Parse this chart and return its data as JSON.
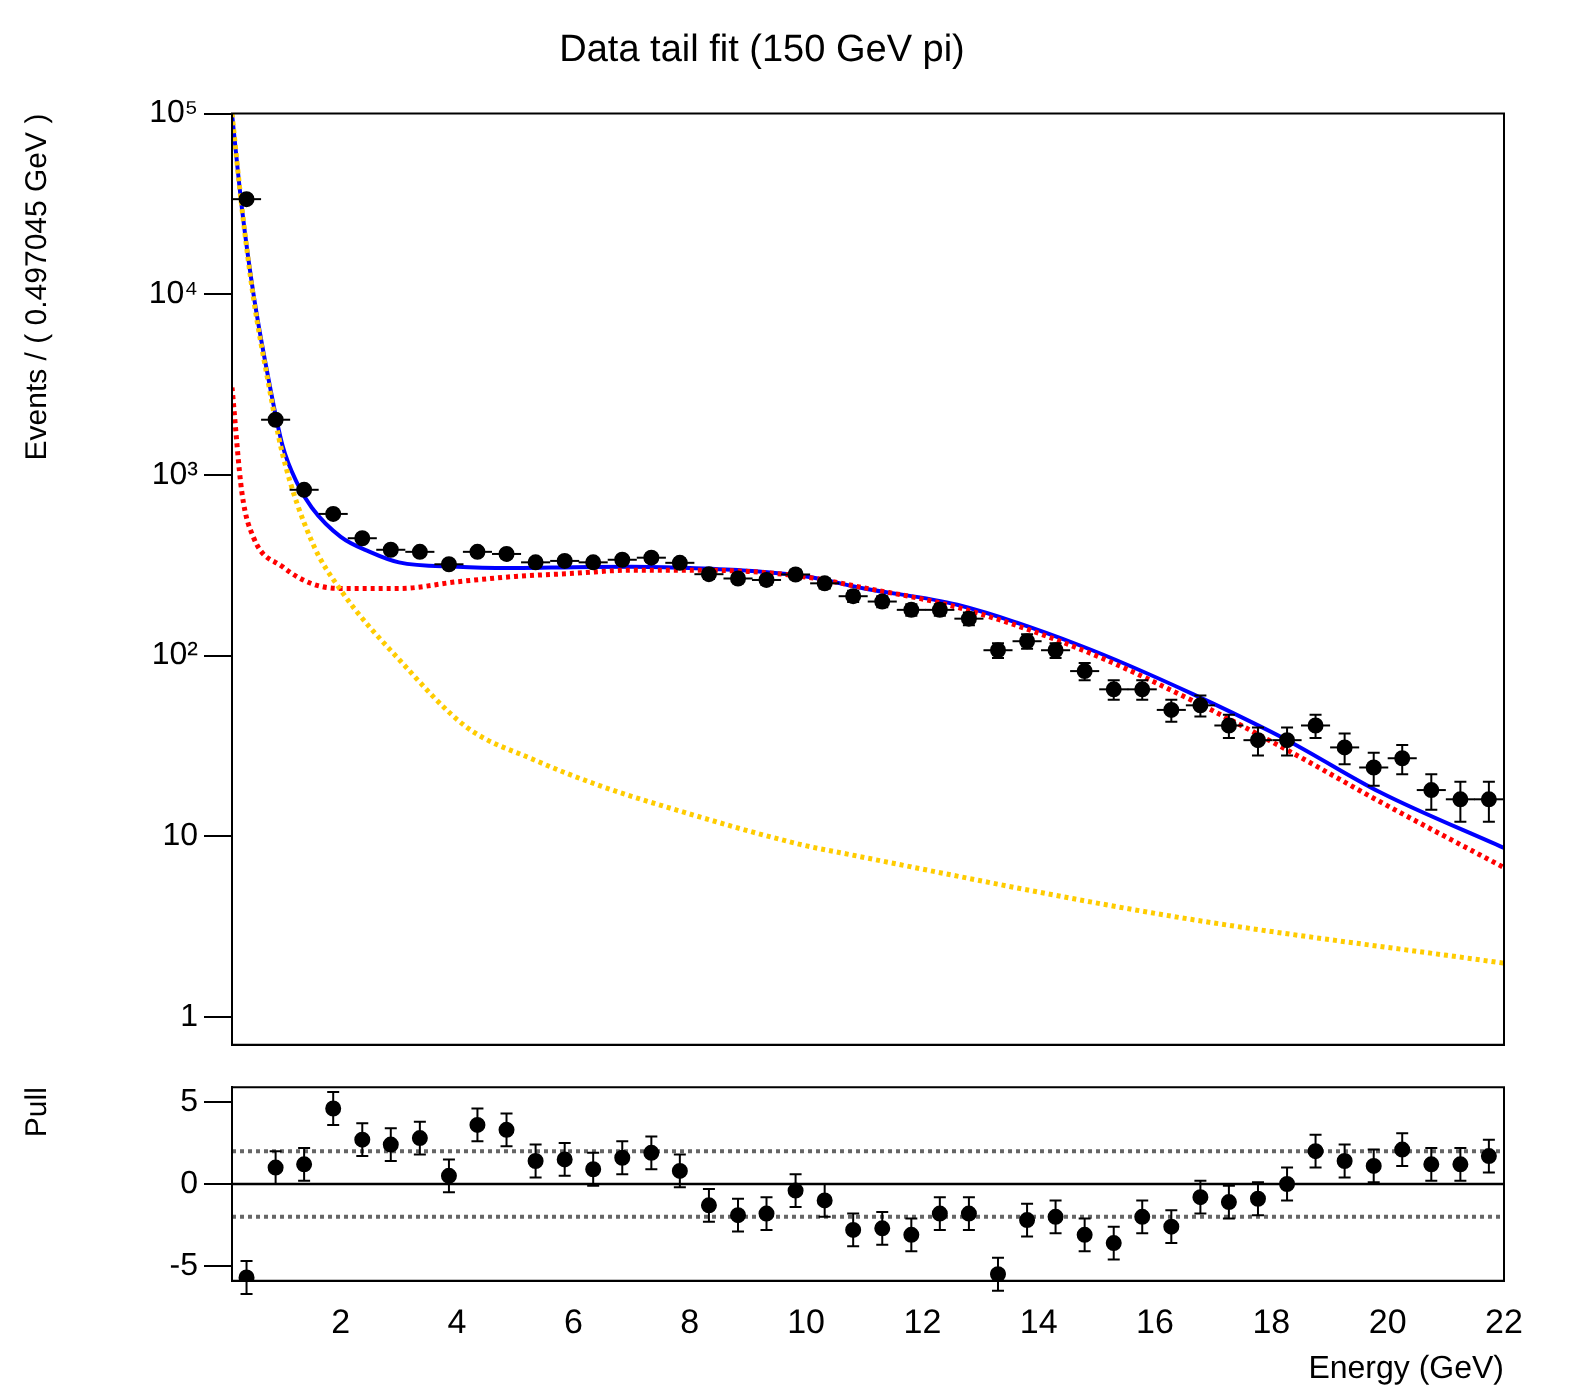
{
  "chart_data": [
    {
      "type": "scatter",
      "title": "Data tail fit (150 GeV pi)",
      "ylabel": "Events / ( 0.497045 GeV )",
      "log": "y",
      "grid": false,
      "legend": false,
      "tick_labels": "y",
      "marker": "circle",
      "xlim": [
        0.13,
        22
      ],
      "xticks": [
        2,
        4,
        6,
        8,
        10,
        12,
        14,
        16,
        18,
        20,
        22
      ],
      "ylim": [
        0.7,
        100000
      ],
      "yticks": [
        1,
        10,
        {
          "value": 100,
          "label": "10²"
        },
        {
          "value": 1000,
          "label": "10³"
        },
        {
          "value": 10000,
          "label": "10⁴"
        },
        {
          "value": 100000,
          "label": "10⁵"
        }
      ],
      "series": [
        {
          "type": "scatter",
          "color": "#000000",
          "x": [
            0.38,
            0.88,
            1.37,
            1.87,
            2.37,
            2.86,
            3.36,
            3.86,
            4.35,
            4.85,
            5.35,
            5.85,
            6.34,
            6.84,
            7.34,
            7.83,
            8.33,
            8.83,
            9.32,
            9.82,
            10.32,
            10.81,
            11.31,
            11.81,
            12.3,
            12.8,
            13.3,
            13.8,
            14.29,
            14.79,
            15.29,
            15.78,
            16.28,
            16.78,
            17.27,
            17.77,
            18.27,
            18.76,
            19.26,
            19.76,
            20.25,
            20.75,
            21.25,
            21.74
          ],
          "values": [
            33600,
            2020,
            827,
            608,
            446,
            385,
            375,
            320,
            375,
            365,
            328,
            334,
            328,
            339,
            348,
            326,
            282,
            267,
            262,
            281,
            251,
            213,
            199,
            179,
            179,
            160,
            107,
            120,
            107,
            82,
            65,
            65,
            50,
            53,
            41,
            34,
            34,
            41,
            31,
            24,
            27,
            18,
            16,
            16
          ],
          "errors": [
            183,
            45,
            29,
            25,
            21,
            20,
            19,
            18,
            19,
            19,
            18,
            18,
            18,
            18,
            19,
            18,
            17,
            16,
            16,
            17,
            16,
            15,
            14,
            13,
            13,
            13,
            10,
            11,
            10,
            9,
            8,
            8,
            7,
            7,
            6,
            6,
            6,
            6,
            6,
            5,
            5,
            4,
            4,
            4
          ],
          "xerrors": [
            0.25,
            0.25,
            0.25,
            0.25,
            0.25,
            0.25,
            0.25,
            0.25,
            0.25,
            0.25,
            0.25,
            0.25,
            0.25,
            0.25,
            0.25,
            0.25,
            0.25,
            0.25,
            0.25,
            0.25,
            0.25,
            0.25,
            0.25,
            0.25,
            0.25,
            0.25,
            0.25,
            0.25,
            0.25,
            0.25,
            0.25,
            0.25,
            0.25,
            0.25,
            0.25,
            0.25,
            0.25,
            0.25,
            0.25,
            0.25,
            0.25,
            0.25,
            0.25,
            0.25
          ]
        },
        {
          "type": "line",
          "color": "#ffcc00",
          "line_style": "dotted",
          "marker": "none",
          "x": [
            0.13,
            0.3,
            0.5,
            0.75,
            1,
            1.5,
            2,
            3.03,
            4.17,
            5.32,
            6.46,
            7.6,
            9.9,
            10.59,
            16.3,
            22
          ],
          "values": [
            100000,
            30000,
            9500,
            3300,
            1300,
            430,
            230,
            93,
            40,
            26.5,
            19,
            14.5,
            9,
            8.1,
            3.6,
            1.98
          ]
        },
        {
          "type": "line",
          "color": "#ff0000",
          "line_style": "dotted",
          "marker": "none",
          "x": [
            0.13,
            0.3,
            0.5,
            1,
            1.5,
            2,
            3,
            4,
            5,
            6,
            7,
            8,
            9,
            10,
            11,
            12.6,
            14.7,
            16.66,
            18.27,
            19.87,
            22
          ],
          "values": [
            3050,
            800,
            450,
            310,
            250,
            235,
            235,
            256,
            274,
            285,
            297,
            297,
            292,
            272,
            237,
            185,
            109,
            56,
            30,
            15.5,
            6.7
          ]
        },
        {
          "type": "line",
          "color": "#0000ff",
          "line_style": "solid",
          "marker": "none",
          "x": [
            0.13,
            0.3,
            0.5,
            0.75,
            1,
            1.25,
            1.5,
            2,
            2.5,
            3,
            4,
            5,
            6,
            7,
            8,
            9,
            10,
            11,
            12.6,
            14.7,
            16.66,
            18.27,
            19.87,
            22
          ],
          "values": [
            100000,
            30000,
            10000,
            3500,
            1450,
            900,
            660,
            454,
            375,
            328,
            310,
            305,
            308,
            310,
            305,
            295,
            274,
            235,
            191,
            114,
            61,
            34,
            17.5,
            8.6
          ]
        }
      ]
    },
    {
      "type": "scatter",
      "xlabel": "Energy (GeV)",
      "ylabel": "Pull",
      "grid": false,
      "legend": false,
      "marker": "circle",
      "xlim": [
        0.13,
        22
      ],
      "xticks": [
        2,
        4,
        6,
        8,
        10,
        12,
        14,
        16,
        18,
        20,
        22
      ],
      "ylim": [
        -5.9,
        5.9
      ],
      "yticks": [
        -5,
        0,
        5
      ],
      "ref_lines": [
        {
          "axis": "y",
          "value": 0,
          "color": "#000000",
          "line_style": "solid"
        },
        {
          "axis": "y",
          "value": 2,
          "color": "#666666",
          "line_style": "dotted"
        },
        {
          "axis": "y",
          "value": -2,
          "color": "#666666",
          "line_style": "dotted"
        }
      ],
      "series": [
        {
          "type": "scatter",
          "color": "#000000",
          "x": [
            0.38,
            0.88,
            1.37,
            1.87,
            2.37,
            2.86,
            3.36,
            3.86,
            4.35,
            4.85,
            5.35,
            5.85,
            6.34,
            6.84,
            7.34,
            7.83,
            8.33,
            8.83,
            9.32,
            9.82,
            10.32,
            10.81,
            11.31,
            11.81,
            12.3,
            12.8,
            13.3,
            13.8,
            14.29,
            14.79,
            15.29,
            15.78,
            16.28,
            16.78,
            17.27,
            17.77,
            18.27,
            18.76,
            19.26,
            19.76,
            20.25,
            20.75,
            21.25,
            21.74
          ],
          "values": [
            -5.7,
            1.0,
            1.2,
            4.6,
            2.7,
            2.4,
            2.8,
            0.5,
            3.6,
            3.3,
            1.4,
            1.5,
            0.9,
            1.6,
            1.9,
            0.8,
            -1.3,
            -1.9,
            -1.8,
            -0.4,
            -1.0,
            -2.8,
            -2.7,
            -3.1,
            -1.8,
            -1.8,
            -5.5,
            -2.2,
            -2.0,
            -3.1,
            -3.6,
            -2.0,
            -2.6,
            -0.8,
            -1.1,
            -0.9,
            0,
            2.0,
            1.4,
            1.1,
            2.1,
            1.2,
            1.2,
            1.7
          ],
          "errors": [
            1,
            1,
            1,
            1,
            1,
            1,
            1,
            1,
            1,
            1,
            1,
            1,
            1,
            1,
            1,
            1,
            1,
            1,
            1,
            1,
            1,
            1,
            1,
            1,
            1,
            1,
            1,
            1,
            1,
            1,
            1,
            1,
            1,
            1,
            1,
            1,
            1,
            1,
            1,
            1,
            1,
            1,
            1,
            1
          ]
        }
      ]
    }
  ]
}
